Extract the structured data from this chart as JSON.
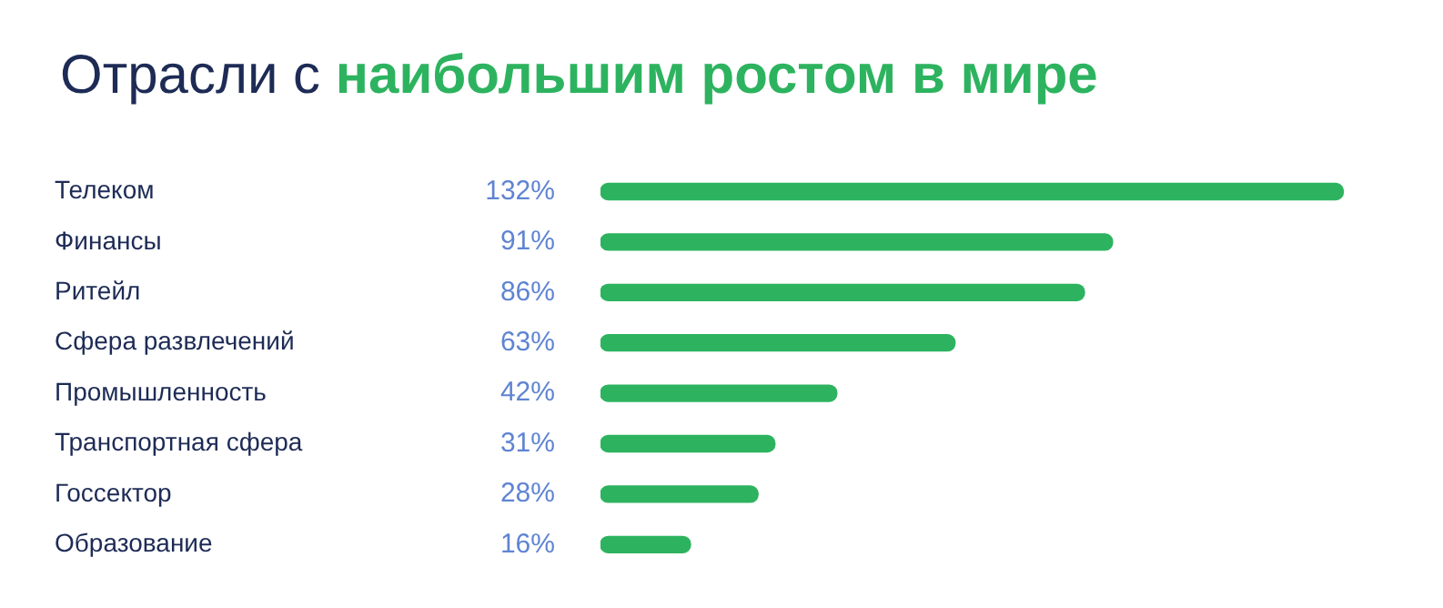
{
  "chart_data": {
    "type": "bar",
    "orientation": "horizontal",
    "title": "Отрасли с наибольшим ростом в мире",
    "categories": [
      "Телеком",
      "Финансы",
      "Ритейл",
      "Сфера развлечений",
      "Промышленность",
      "Транспортная сфера",
      "Госсектор",
      "Образование"
    ],
    "values": [
      132,
      91,
      86,
      63,
      42,
      31,
      28,
      16
    ],
    "value_labels": [
      "132%",
      "91%",
      "86%",
      "63%",
      "42%",
      "31%",
      "28%",
      "16%"
    ],
    "color": "#2db35f",
    "grid": false,
    "legend": false
  }
}
